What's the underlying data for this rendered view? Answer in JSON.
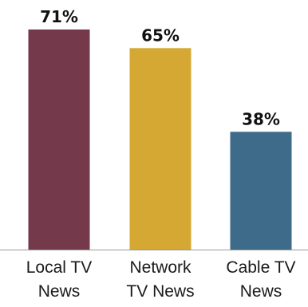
{
  "chart_data": {
    "type": "bar",
    "categories": [
      [
        "Local TV",
        "News"
      ],
      [
        "Network",
        "TV News"
      ],
      [
        "Cable TV",
        "News"
      ]
    ],
    "values": [
      71,
      65,
      38
    ],
    "value_labels": [
      "71%",
      "65%",
      "38%"
    ],
    "colors": [
      "#74394a",
      "#d4a832",
      "#3f6b8b"
    ],
    "ylim": [
      0,
      80
    ],
    "axis_color": "#999999",
    "grid": false,
    "legend": "none"
  }
}
